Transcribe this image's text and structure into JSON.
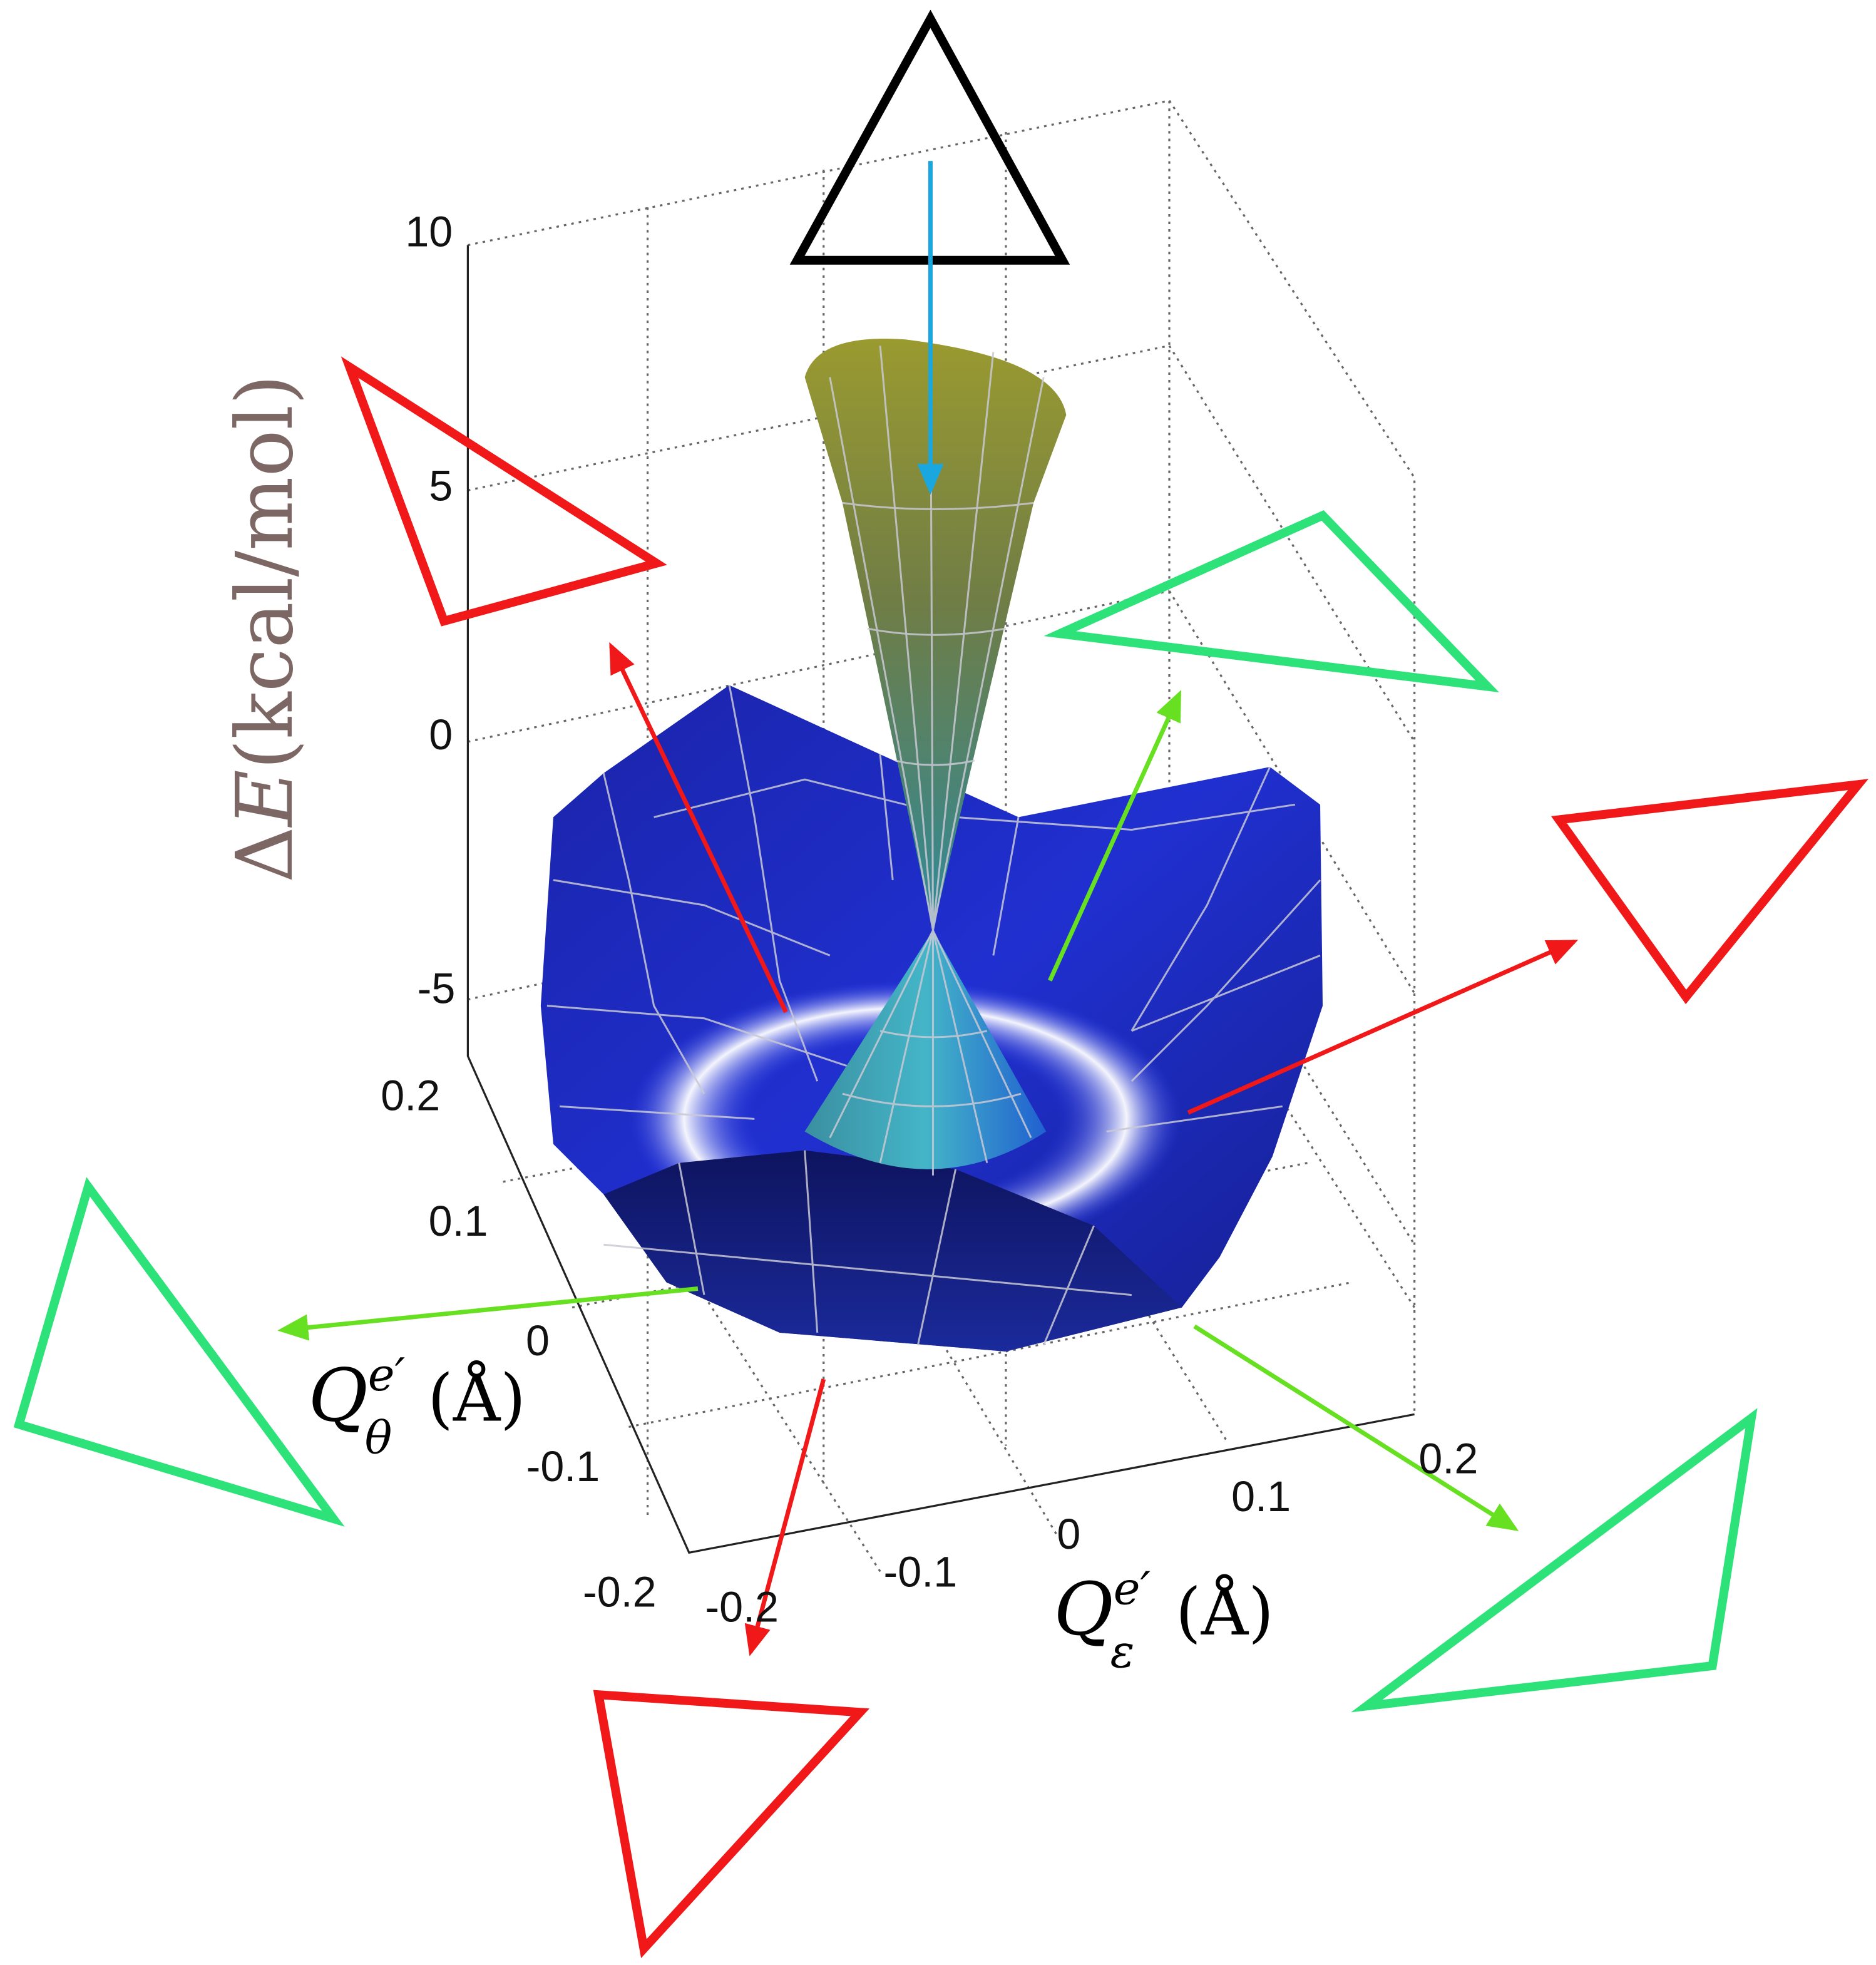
{
  "z_axis": {
    "label": {
      "delta": "Δ",
      "symbol": "E",
      "unit": "(kcal/mol)"
    },
    "ticks": [
      10,
      5,
      0,
      -5
    ]
  },
  "theta_axis": {
    "label": {
      "symbol": "Q",
      "superscript": "e′",
      "subscript": "θ",
      "unit": "(Å)"
    },
    "ticks": [
      0.2,
      0.1,
      0,
      -0.1,
      -0.2
    ]
  },
  "epsilon_axis": {
    "label": {
      "symbol": "Q",
      "superscript": "e′",
      "subscript": "ε",
      "unit": "(Å)"
    },
    "ticks": [
      -0.2,
      -0.1,
      0,
      0.1,
      0.2
    ]
  }
}
